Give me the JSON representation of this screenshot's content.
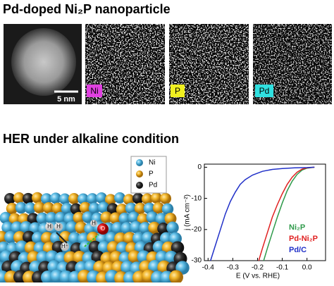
{
  "header": {
    "title": "Pd-doped Ni₂P nanoparticle"
  },
  "images": {
    "scale_bar": "5 nm",
    "panels": [
      {
        "label": "Ni"
      },
      {
        "label": "P"
      },
      {
        "label": "Pd"
      }
    ]
  },
  "section": {
    "title": "HER under alkaline condition"
  },
  "schematic": {
    "legend": [
      "Ni",
      "P",
      "Pd"
    ],
    "labels": [
      "H",
      "H",
      "H⁺",
      "O",
      "H"
    ]
  },
  "chart_data": {
    "type": "line",
    "xlabel": "E (V vs. RHE)",
    "ylabel": "j (mA cm⁻²)",
    "xlim": [
      -0.415,
      0.075
    ],
    "ylim": [
      -30,
      1
    ],
    "xticks": [
      -0.4,
      -0.3,
      -0.2,
      -0.1,
      {
        "value": 0,
        "label": "0.0"
      }
    ],
    "yticks": [
      0,
      -10,
      -20,
      -30
    ],
    "series": [
      {
        "name": "Ni₂P",
        "color": "#2e9a4a",
        "x": [
          -0.175,
          -0.16,
          -0.14,
          -0.12,
          -0.1,
          -0.08,
          -0.06,
          -0.04,
          -0.02,
          0.0,
          0.03
        ],
        "values": [
          -30,
          -26,
          -21,
          -16,
          -11.5,
          -7.5,
          -4.5,
          -2.3,
          -0.9,
          -0.3,
          0
        ]
      },
      {
        "name": "Pd-Ni₂P",
        "color": "#e02020",
        "x": [
          -0.195,
          -0.18,
          -0.16,
          -0.14,
          -0.12,
          -0.1,
          -0.08,
          -0.06,
          -0.04,
          -0.02,
          0.0,
          0.03
        ],
        "values": [
          -30,
          -26,
          -21,
          -16,
          -12,
          -8.5,
          -5.5,
          -3.2,
          -1.6,
          -0.6,
          -0.2,
          0
        ]
      },
      {
        "name": "Pd/C",
        "color": "#2030c8",
        "x": [
          -0.39,
          -0.37,
          -0.35,
          -0.33,
          -0.31,
          -0.29,
          -0.27,
          -0.25,
          -0.22,
          -0.18,
          -0.14,
          -0.1,
          -0.05,
          0.0,
          0.03
        ],
        "values": [
          -30,
          -25,
          -20,
          -15,
          -11,
          -8,
          -5.5,
          -4,
          -2.5,
          -1.3,
          -0.7,
          -0.4,
          -0.2,
          -0.1,
          0
        ]
      }
    ]
  }
}
